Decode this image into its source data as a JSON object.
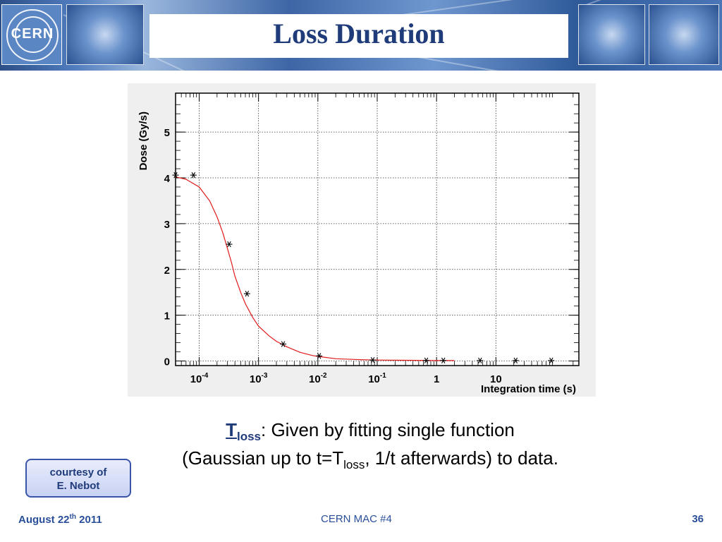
{
  "header": {
    "title": "Loss Duration",
    "logo_text": "CERN"
  },
  "caption": {
    "t_symbol": "T",
    "t_sub": "loss",
    "line1_rest": ": Given by fitting single function",
    "line2_pre": "(Gaussian up to t=T",
    "line2_sub": "loss",
    "line2_post": ", 1/t afterwards) to data."
  },
  "courtesy": {
    "line1": "courtesy of",
    "line2": "E. Nebot"
  },
  "footer": {
    "date_pre": "August 22",
    "date_sup": "th",
    "date_post": " 2011",
    "event": "CERN MAC #4",
    "page": "36"
  },
  "colors": {
    "title": "#1f3b7a",
    "fit_curve": "#e0191b",
    "markers": "#000000",
    "accent": "#2a4f9a"
  },
  "chart_data": {
    "type": "scatter",
    "title": "",
    "xlabel": "Integration time (s)",
    "ylabel": "Dose (Gy/s)",
    "x_scale": "log",
    "xlim": [
      4e-05,
      250
    ],
    "ylim": [
      -0.1,
      5.85
    ],
    "x_tick_labels": [
      {
        "value": 0.0001,
        "base": "10",
        "exp": "-4"
      },
      {
        "value": 0.001,
        "base": "10",
        "exp": "-3"
      },
      {
        "value": 0.01,
        "base": "10",
        "exp": "-2"
      },
      {
        "value": 0.1,
        "base": "10",
        "exp": "-1"
      },
      {
        "value": 1,
        "base": "1",
        "exp": ""
      },
      {
        "value": 10,
        "base": "10",
        "exp": ""
      }
    ],
    "y_ticks": [
      0,
      1,
      2,
      3,
      4,
      5
    ],
    "grid": true,
    "series": [
      {
        "marker": "asterisk",
        "x": [
          4e-05,
          8e-05,
          0.00032,
          0.00064,
          0.0026,
          0.0105,
          0.084,
          0.67,
          1.3,
          5.4,
          21.5,
          85.6
        ],
        "y": [
          4.06,
          4.06,
          2.55,
          1.47,
          0.37,
          0.11,
          0.02,
          0.01,
          0.01,
          0.01,
          0.01,
          0.01
        ]
      },
      {
        "type": "line",
        "x": [
          4e-05,
          6e-05,
          0.0001,
          0.00015,
          0.0002,
          0.00025,
          0.0003,
          0.00035,
          0.0004,
          0.0005,
          0.0006,
          0.0008,
          0.001,
          0.0015,
          0.002,
          0.003,
          0.005,
          0.008,
          0.01,
          0.02,
          0.05,
          0.1,
          0.3,
          1,
          2
        ],
        "y": [
          4.02,
          3.97,
          3.8,
          3.5,
          3.15,
          2.8,
          2.45,
          2.15,
          1.85,
          1.5,
          1.25,
          0.95,
          0.76,
          0.55,
          0.43,
          0.31,
          0.19,
          0.12,
          0.1,
          0.05,
          0.03,
          0.02,
          0.015,
          0.01,
          0.01
        ]
      }
    ]
  }
}
